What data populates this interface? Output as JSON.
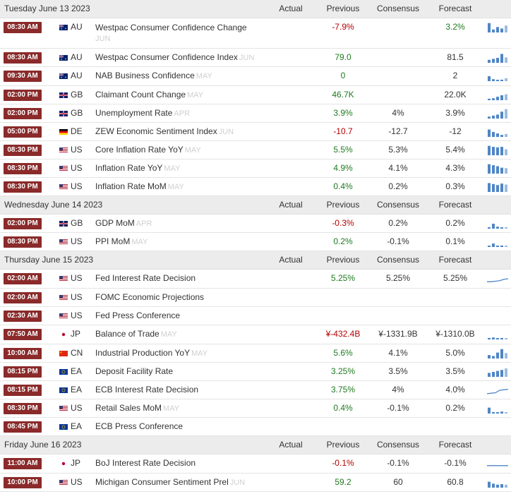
{
  "columns": {
    "actual": "Actual",
    "previous": "Previous",
    "consensus": "Consensus",
    "forecast": "Forecast"
  },
  "colors": {
    "time_badge": "#8b2a2a",
    "negative": "#b40000",
    "positive": "#1f7a1f",
    "spark": "#4f86c6",
    "spark_forecast": "#f0c87a"
  },
  "days": [
    {
      "date": "Tuesday June 13 2023",
      "events": [
        {
          "time": "08:30 AM",
          "country": "AU",
          "flag": "au-flag-icon",
          "name": "Westpac Consumer Confidence Change",
          "ref": "JUN",
          "previous": "-7.9%",
          "prev_color": "red",
          "consensus": "",
          "forecast": "3.2%",
          "fore_color": "green",
          "spark": [
            0.95,
            0.3,
            0.55,
            0.4,
            0.7
          ],
          "spark_type": "bars"
        },
        {
          "time": "08:30 AM",
          "country": "AU",
          "flag": "au-flag-icon",
          "name": "Westpac Consumer Confidence Index",
          "ref": "JUN",
          "previous": "79.0",
          "prev_color": "green",
          "consensus": "",
          "forecast": "81.5",
          "fore_color": "dark",
          "spark": [
            0.3,
            0.4,
            0.5,
            0.9,
            0.55
          ],
          "spark_type": "bars"
        },
        {
          "time": "09:30 AM",
          "country": "AU",
          "flag": "au-flag-icon",
          "name": "NAB Business Confidence",
          "ref": "MAY",
          "previous": "0",
          "prev_color": "green",
          "consensus": "",
          "forecast": "2",
          "fore_color": "dark",
          "spark": [
            0.5,
            0.2,
            0.1,
            0.15,
            0.3
          ],
          "spark_type": "bars"
        },
        {
          "time": "02:00 PM",
          "country": "GB",
          "flag": "gb-flag-icon",
          "name": "Claimant Count Change",
          "ref": "MAY",
          "previous": "46.7K",
          "prev_color": "green",
          "consensus": "",
          "forecast": "22.0K",
          "fore_color": "dark",
          "spark": [
            0.15,
            0.2,
            0.35,
            0.5,
            0.6
          ],
          "spark_type": "bars"
        },
        {
          "time": "02:00 PM",
          "country": "GB",
          "flag": "gb-flag-icon",
          "name": "Unemployment Rate",
          "ref": "APR",
          "previous": "3.9%",
          "prev_color": "green",
          "consensus": "4%",
          "forecast": "3.9%",
          "fore_color": "dark",
          "spark": [
            0.2,
            0.3,
            0.4,
            0.7,
            0.95
          ],
          "spark_type": "bars"
        },
        {
          "time": "05:00 PM",
          "country": "DE",
          "flag": "de-flag-icon",
          "name": "ZEW Economic Sentiment Index",
          "ref": "JUN",
          "previous": "-10.7",
          "prev_color": "red",
          "consensus": "-12.7",
          "forecast": "-12",
          "fore_color": "dark",
          "spark": [
            0.75,
            0.5,
            0.35,
            0.2,
            0.3
          ],
          "spark_type": "bars"
        },
        {
          "time": "08:30 PM",
          "country": "US",
          "flag": "us-flag-icon",
          "name": "Core Inflation Rate YoY",
          "ref": "MAY",
          "previous": "5.5%",
          "prev_color": "green",
          "consensus": "5.3%",
          "forecast": "5.4%",
          "fore_color": "dark",
          "spark": [
            0.95,
            0.85,
            0.8,
            0.85,
            0.6
          ],
          "spark_type": "bars"
        },
        {
          "time": "08:30 PM",
          "country": "US",
          "flag": "us-flag-icon",
          "name": "Inflation Rate YoY",
          "ref": "MAY",
          "previous": "4.9%",
          "prev_color": "green",
          "consensus": "4.1%",
          "forecast": "4.3%",
          "fore_color": "dark",
          "spark": [
            0.95,
            0.85,
            0.75,
            0.6,
            0.55
          ],
          "spark_type": "bars"
        },
        {
          "time": "08:30 PM",
          "country": "US",
          "flag": "us-flag-icon",
          "name": "Inflation Rate MoM",
          "ref": "MAY",
          "previous": "0.4%",
          "prev_color": "green",
          "consensus": "0.2%",
          "forecast": "0.3%",
          "fore_color": "dark",
          "spark": [
            0.9,
            0.8,
            0.7,
            0.85,
            0.75
          ],
          "spark_type": "bars"
        }
      ]
    },
    {
      "date": "Wednesday June 14 2023",
      "events": [
        {
          "time": "02:00 PM",
          "country": "GB",
          "flag": "gb-flag-icon",
          "name": "GDP MoM",
          "ref": "APR",
          "previous": "-0.3%",
          "prev_color": "red",
          "consensus": "0.2%",
          "forecast": "0.2%",
          "fore_color": "dark",
          "spark": [
            0.15,
            0.5,
            0.2,
            0.1,
            0.15
          ],
          "spark_type": "bars"
        },
        {
          "time": "08:30 PM",
          "country": "US",
          "flag": "us-flag-icon",
          "name": "PPI MoM",
          "ref": "MAY",
          "previous": "0.2%",
          "prev_color": "green",
          "consensus": "-0.1%",
          "forecast": "0.1%",
          "fore_color": "dark",
          "spark": [
            0.1,
            0.35,
            0.1,
            0.15,
            0.1
          ],
          "spark_type": "bars"
        }
      ]
    },
    {
      "date": "Thursday June 15 2023",
      "events": [
        {
          "time": "02:00 AM",
          "country": "US",
          "flag": "us-flag-icon",
          "name": "Fed Interest Rate Decision",
          "ref": "",
          "previous": "5.25%",
          "prev_color": "green",
          "consensus": "5.25%",
          "forecast": "5.25%",
          "fore_color": "dark",
          "spark": [
            0.2,
            0.2,
            0.25,
            0.3,
            0.45,
            0.5
          ],
          "spark_type": "line"
        },
        {
          "time": "02:00 AM",
          "country": "US",
          "flag": "us-flag-icon",
          "name": "FOMC Economic Projections",
          "ref": "",
          "previous": "",
          "prev_color": "dark",
          "consensus": "",
          "forecast": "",
          "fore_color": "dark",
          "spark": [],
          "spark_type": "none"
        },
        {
          "time": "02:30 AM",
          "country": "US",
          "flag": "us-flag-icon",
          "name": "Fed Press Conference",
          "ref": "",
          "previous": "",
          "prev_color": "dark",
          "consensus": "",
          "forecast": "",
          "fore_color": "dark",
          "spark": [],
          "spark_type": "none"
        },
        {
          "time": "07:50 AM",
          "country": "JP",
          "flag": "jp-flag-icon",
          "name": "Balance of Trade",
          "ref": "MAY",
          "previous": "¥-432.4B",
          "prev_color": "red",
          "consensus": "¥-1331.9B",
          "forecast": "¥-1310.0B",
          "fore_color": "dark",
          "spark": [
            0.15,
            0.2,
            0.1,
            0.15,
            0.1
          ],
          "spark_type": "bars"
        },
        {
          "time": "10:00 AM",
          "country": "CN",
          "flag": "cn-flag-icon",
          "name": "Industrial Production YoY",
          "ref": "MAY",
          "previous": "5.6%",
          "prev_color": "green",
          "consensus": "4.1%",
          "forecast": "5.0%",
          "fore_color": "dark",
          "spark": [
            0.35,
            0.25,
            0.6,
            0.95,
            0.55
          ],
          "spark_type": "bars"
        },
        {
          "time": "08:15 PM",
          "country": "EA",
          "flag": "eu-flag-icon",
          "name": "Deposit Facility Rate",
          "ref": "",
          "previous": "3.25%",
          "prev_color": "green",
          "consensus": "3.5%",
          "forecast": "3.5%",
          "fore_color": "dark",
          "spark": [
            0.4,
            0.5,
            0.6,
            0.7,
            0.85
          ],
          "spark_type": "bars"
        },
        {
          "time": "08:15 PM",
          "country": "EA",
          "flag": "eu-flag-icon",
          "name": "ECB Interest Rate Decision",
          "ref": "",
          "previous": "3.75%",
          "prev_color": "green",
          "consensus": "4%",
          "forecast": "4.0%",
          "fore_color": "dark",
          "spark": [
            0.15,
            0.2,
            0.25,
            0.5,
            0.55,
            0.6
          ],
          "spark_type": "line"
        },
        {
          "time": "08:30 PM",
          "country": "US",
          "flag": "us-flag-icon",
          "name": "Retail Sales MoM",
          "ref": "MAY",
          "previous": "0.4%",
          "prev_color": "green",
          "consensus": "-0.1%",
          "forecast": "0.2%",
          "fore_color": "dark",
          "spark": [
            0.6,
            0.15,
            0.1,
            0.2,
            0.15
          ],
          "spark_type": "bars"
        },
        {
          "time": "08:45 PM",
          "country": "EA",
          "flag": "eu-flag-icon",
          "name": "ECB Press Conference",
          "ref": "",
          "previous": "",
          "prev_color": "dark",
          "consensus": "",
          "forecast": "",
          "fore_color": "dark",
          "spark": [],
          "spark_type": "none"
        }
      ]
    },
    {
      "date": "Friday June 16 2023",
      "events": [
        {
          "time": "11:00 AM",
          "country": "JP",
          "flag": "jp-flag-icon",
          "name": "BoJ Interest Rate Decision",
          "ref": "",
          "previous": "-0.1%",
          "prev_color": "red",
          "consensus": "-0.1%",
          "forecast": "-0.1%",
          "fore_color": "dark",
          "spark": [
            0.3,
            0.3,
            0.3,
            0.3,
            0.3,
            0.3
          ],
          "spark_type": "line"
        },
        {
          "time": "10:00 PM",
          "country": "US",
          "flag": "us-flag-icon",
          "name": "Michigan Consumer Sentiment Prel",
          "ref": "JUN",
          "previous": "59.2",
          "prev_color": "green",
          "consensus": "60",
          "forecast": "60.8",
          "fore_color": "dark",
          "spark": [
            0.6,
            0.4,
            0.3,
            0.35,
            0.3
          ],
          "spark_type": "bars"
        }
      ]
    }
  ]
}
